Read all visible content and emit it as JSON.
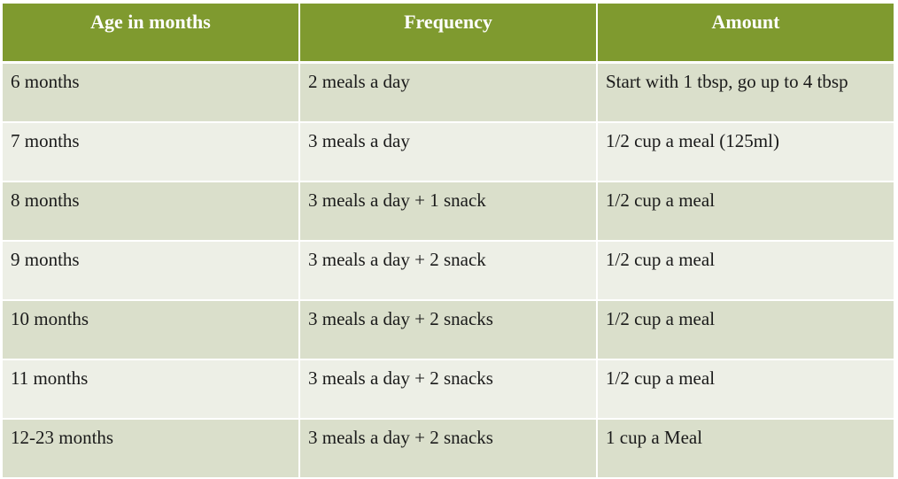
{
  "table": {
    "headers": [
      "Age in months",
      "Frequency",
      "Amount"
    ],
    "rows": [
      [
        "6 months",
        "2 meals a day",
        "Start with 1 tbsp, go up to 4 tbsp"
      ],
      [
        "7 months",
        "3 meals a day",
        "1/2 cup a meal (125ml)"
      ],
      [
        "8 months",
        "3 meals a day + 1 snack",
        "1/2 cup a meal"
      ],
      [
        "9 months",
        "3 meals a day + 2 snack",
        "1/2 cup a meal"
      ],
      [
        "10 months",
        "3 meals a day + 2 snacks",
        "1/2 cup a meal"
      ],
      [
        "11 months",
        "3 meals a day + 2 snacks",
        "1/2 cup a meal"
      ],
      [
        "12-23 months",
        "3 meals a day + 2 snacks",
        "1 cup a Meal"
      ]
    ]
  },
  "colors": {
    "header_bg": "#7f9a2f",
    "row_dark": "#dadfcb",
    "row_light": "#edefe6"
  }
}
